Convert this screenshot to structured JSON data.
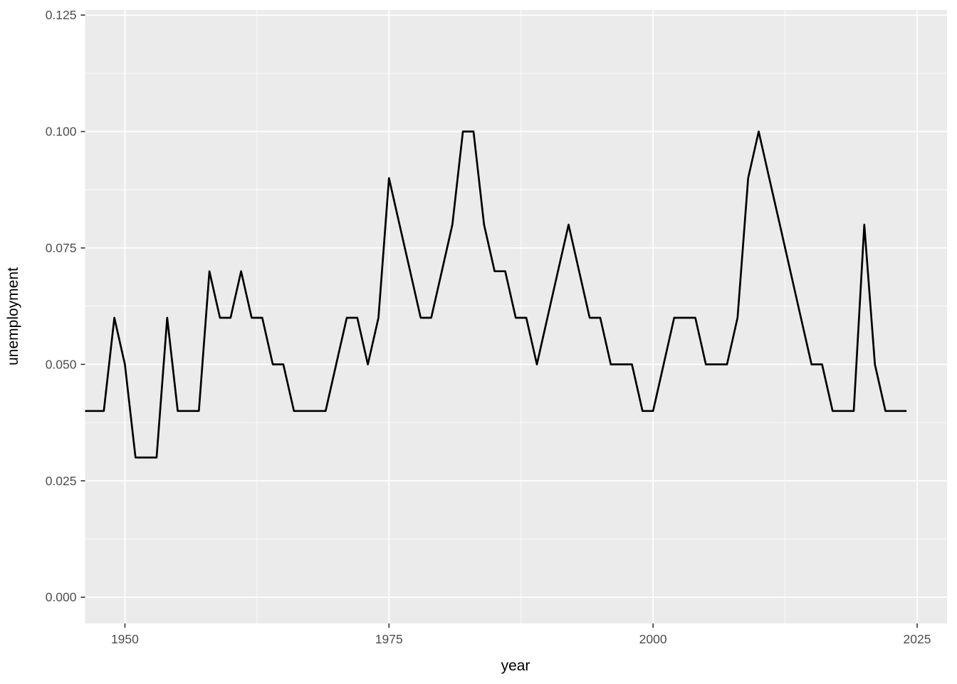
{
  "figure": {
    "xlabel": "year",
    "ylabel": "unemployment"
  },
  "chart_data": {
    "type": "line",
    "title": "",
    "xlabel": "year",
    "ylabel": "unemployment",
    "x_ticks": [
      1950,
      1975,
      2000,
      2025
    ],
    "x_minor_ticks": [
      1962.5,
      1987.5,
      2012.5
    ],
    "y_ticks": [
      0.0,
      0.025,
      0.05,
      0.075,
      0.1,
      0.125
    ],
    "y_tick_labels": [
      "0.000",
      "0.025",
      "0.050",
      "0.075",
      "0.100",
      "0.125"
    ],
    "y_minor_ticks": [
      0.0125,
      0.0375,
      0.0625,
      0.0875,
      0.1125
    ],
    "xlim": [
      1946.23,
      2027.83
    ],
    "ylim": [
      -0.00563,
      0.1261
    ],
    "grid": "major and minor white gridlines on grey panel",
    "legend": "none",
    "colors": {
      "panel_background": "#EBEBEB",
      "grid": "#FFFFFF",
      "line": "#000000",
      "tick_label": "#4D4D4D",
      "tick_mark": "#333333",
      "axis_title": "#000000"
    },
    "series": [
      {
        "name": "unemployment",
        "x": [
          1946,
          1947,
          1948,
          1949,
          1950,
          1951,
          1952,
          1953,
          1954,
          1955,
          1956,
          1957,
          1958,
          1959,
          1960,
          1961,
          1962,
          1963,
          1964,
          1965,
          1966,
          1967,
          1968,
          1969,
          1970,
          1971,
          1972,
          1973,
          1974,
          1975,
          1976,
          1977,
          1978,
          1979,
          1980,
          1981,
          1982,
          1983,
          1984,
          1985,
          1986,
          1987,
          1988,
          1989,
          1990,
          1991,
          1992,
          1993,
          1994,
          1995,
          1996,
          1997,
          1998,
          1999,
          2000,
          2001,
          2002,
          2003,
          2004,
          2005,
          2006,
          2007,
          2008,
          2009,
          2010,
          2011,
          2012,
          2013,
          2014,
          2015,
          2016,
          2017,
          2018,
          2019,
          2020,
          2021,
          2022,
          2023,
          2024
        ],
        "y": [
          0.04,
          0.04,
          0.04,
          0.06,
          0.05,
          0.03,
          0.03,
          0.03,
          0.06,
          0.04,
          0.04,
          0.04,
          0.07,
          0.06,
          0.06,
          0.07,
          0.06,
          0.06,
          0.05,
          0.05,
          0.04,
          0.04,
          0.04,
          0.04,
          0.05,
          0.06,
          0.06,
          0.05,
          0.06,
          0.09,
          0.08,
          0.07,
          0.06,
          0.06,
          0.07,
          0.08,
          0.1,
          0.1,
          0.08,
          0.07,
          0.07,
          0.06,
          0.06,
          0.05,
          0.06,
          0.07,
          0.08,
          0.07,
          0.06,
          0.06,
          0.05,
          0.05,
          0.05,
          0.04,
          0.04,
          0.05,
          0.06,
          0.06,
          0.06,
          0.05,
          0.05,
          0.05,
          0.06,
          0.09,
          0.1,
          0.09,
          0.08,
          0.07,
          0.06,
          0.05,
          0.05,
          0.04,
          0.04,
          0.04,
          0.08,
          0.05,
          0.04,
          0.04,
          0.04
        ]
      }
    ]
  }
}
